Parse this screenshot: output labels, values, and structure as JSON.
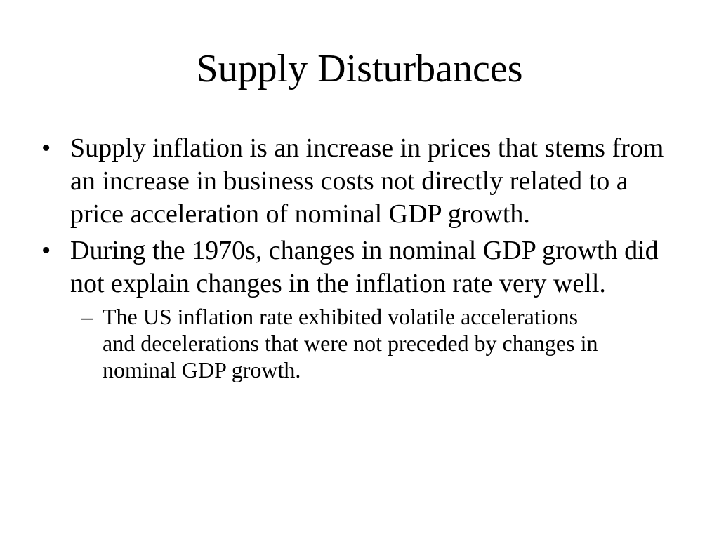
{
  "slide": {
    "title": "Supply Disturbances",
    "bullets": [
      {
        "marker": "•",
        "text": "Supply inflation is an increase in prices that stems from an increase in business costs not directly related to a price acceleration of nominal GDP growth."
      },
      {
        "marker": "•",
        "text": "During the 1970s, changes in nominal GDP growth did not explain changes in the inflation rate very well.",
        "sub": [
          {
            "marker": "–",
            "text": "The US inflation rate exhibited volatile accelerations and decelerations that were not preceded by changes in nominal GDP growth."
          }
        ]
      }
    ]
  }
}
